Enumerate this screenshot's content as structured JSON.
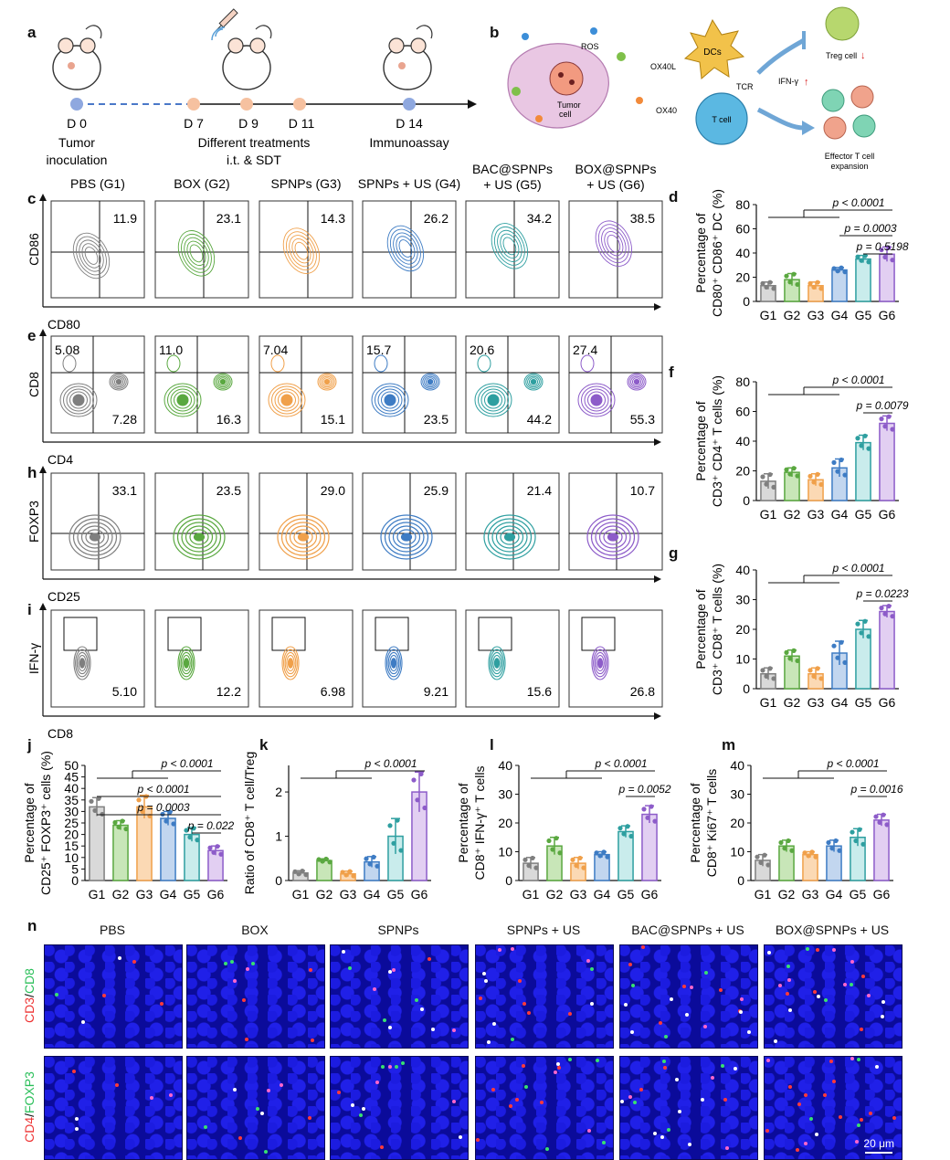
{
  "panel_letters": {
    "a": "a",
    "b": "b",
    "c": "c",
    "d": "d",
    "e": "e",
    "f": "f",
    "g": "g",
    "h": "h",
    "i": "i",
    "j": "j",
    "k": "k",
    "l": "l",
    "m": "m",
    "n": "n"
  },
  "timeline": {
    "days": [
      "D 0",
      "D 7",
      "D 9",
      "D 11",
      "D 14"
    ],
    "tumor_inoculation": [
      "Tumor",
      "inoculation"
    ],
    "treatments": [
      "Different treatments",
      "i.t. & SDT"
    ],
    "immunoassay": "Immunoassay"
  },
  "schematic": {
    "ros": "ROS",
    "tumor_cell": [
      "Tumor",
      "cell"
    ],
    "dcs": "DCs",
    "ox40l": "OX40L",
    "ox40": "OX40",
    "tcr": "TCR",
    "t_cell": "T cell",
    "treg": "Treg cell",
    "ifn": "IFN-γ",
    "effector": [
      "Effector T cell",
      "expansion"
    ]
  },
  "group_headers": [
    [
      "PBS (G1)"
    ],
    [
      "BOX (G2)"
    ],
    [
      "SPNPs (G3)"
    ],
    [
      "SPNPs + US (G4)"
    ],
    [
      "BAC@SPNPs",
      "+ US (G5)"
    ],
    [
      "BOX@SPNPs",
      "+ US (G6)"
    ]
  ],
  "group_colors": [
    "#7f7f7f",
    "#5aa840",
    "#f0a04a",
    "#3e7cc4",
    "#2e9fa0",
    "#8d5cc9"
  ],
  "flow_rows": [
    {
      "panel": "c",
      "ylabel": "CD86",
      "xlabel": "CD80",
      "values": [
        "11.9",
        "23.1",
        "14.3",
        "26.2",
        "34.2",
        "38.5"
      ]
    },
    {
      "panel": "e",
      "ylabel": "CD8",
      "xlabel": "CD4",
      "ul": [
        "5.08",
        "11.0",
        "7.04",
        "15.7",
        "20.6",
        "27.4"
      ],
      "lr": [
        "7.28",
        "16.3",
        "15.1",
        "23.5",
        "44.2",
        "55.3"
      ]
    },
    {
      "panel": "h",
      "ylabel": "FOXP3",
      "xlabel": "CD25",
      "values": [
        "33.1",
        "23.5",
        "29.0",
        "25.9",
        "21.4",
        "10.7"
      ]
    },
    {
      "panel": "i",
      "ylabel": "IFN-γ",
      "xlabel": "CD8",
      "values": [
        "5.10",
        "12.2",
        "6.98",
        "9.21",
        "15.6",
        "26.8"
      ]
    }
  ],
  "chart_data": [
    {
      "id": "d",
      "type": "bar",
      "categories": [
        "G1",
        "G2",
        "G3",
        "G4",
        "G5",
        "G6"
      ],
      "values": [
        13,
        18,
        13,
        26,
        35,
        39
      ],
      "errors": [
        3,
        5,
        3,
        2,
        3,
        6
      ],
      "ylabel": [
        "Percentage of",
        "CD80⁺ CD86⁺ DC (%)"
      ],
      "ylim": [
        0,
        80
      ],
      "ticks": [
        0,
        20,
        40,
        60,
        80
      ],
      "sig": [
        {
          "text": "p < 0.0001",
          "type": "multi"
        },
        {
          "text": "p = 0.0003",
          "type": "pair"
        },
        {
          "text": "p = 0.5198",
          "type": "pair"
        }
      ]
    },
    {
      "id": "f",
      "type": "bar",
      "categories": [
        "G1",
        "G2",
        "G3",
        "G4",
        "G5",
        "G6"
      ],
      "values": [
        13,
        19,
        14,
        22,
        39,
        52
      ],
      "errors": [
        5,
        3,
        4,
        6,
        5,
        5
      ],
      "ylabel": [
        "Percentage of",
        "CD3⁺ CD4⁺ T cells (%)"
      ],
      "ylim": [
        0,
        80
      ],
      "ticks": [
        0,
        20,
        40,
        60,
        80
      ],
      "sig": [
        {
          "text": "p < 0.0001",
          "type": "multi"
        },
        {
          "text": "p = 0.0079",
          "type": "pair"
        }
      ]
    },
    {
      "id": "g",
      "type": "bar",
      "categories": [
        "G1",
        "G2",
        "G3",
        "G4",
        "G5",
        "G6"
      ],
      "values": [
        5,
        11,
        5,
        12,
        20,
        26
      ],
      "errors": [
        2,
        2,
        2,
        4,
        3,
        2
      ],
      "ylabel": [
        "Percentage of",
        "CD3⁺ CD8⁺ T cells (%)"
      ],
      "ylim": [
        0,
        40
      ],
      "ticks": [
        0,
        10,
        20,
        30,
        40
      ],
      "sig": [
        {
          "text": "p < 0.0001",
          "type": "multi"
        },
        {
          "text": "p = 0.0223",
          "type": "pair"
        }
      ]
    },
    {
      "id": "j",
      "type": "bar",
      "categories": [
        "G1",
        "G2",
        "G3",
        "G4",
        "G5",
        "G6"
      ],
      "values": [
        32,
        24,
        32,
        27,
        20,
        13
      ],
      "errors": [
        4,
        2,
        5,
        3,
        3,
        2
      ],
      "ylabel": [
        "Percentage of",
        "CD25⁺ FOXP3⁺ cells (%)"
      ],
      "ylim": [
        0,
        50
      ],
      "ticks": [
        0,
        5,
        10,
        15,
        20,
        25,
        30,
        35,
        40,
        45,
        50
      ],
      "sig": [
        {
          "text": "p < 0.0001",
          "type": "pair"
        },
        {
          "text": "p = 0.0003",
          "type": "pair"
        },
        {
          "text": "p < 0.0001",
          "type": "multi"
        },
        {
          "text": "p = 0.022",
          "type": "pair"
        }
      ]
    },
    {
      "id": "k",
      "type": "bar",
      "categories": [
        "G1",
        "G2",
        "G3",
        "G4",
        "G5",
        "G6"
      ],
      "values": [
        0.17,
        0.45,
        0.15,
        0.42,
        1.0,
        2.0
      ],
      "errors": [
        0.05,
        0.04,
        0.06,
        0.12,
        0.4,
        0.45
      ],
      "ylabel": [
        "Ratio of CD8⁺ T cell/Treg"
      ],
      "ylim": [
        0,
        2.6
      ],
      "ticks": [
        0,
        1,
        2
      ],
      "sig": [
        {
          "text": "p < 0.0001",
          "type": "multi"
        }
      ]
    },
    {
      "id": "l",
      "type": "bar",
      "categories": [
        "G1",
        "G2",
        "G3",
        "G4",
        "G5",
        "G6"
      ],
      "values": [
        6,
        12,
        6,
        9,
        17,
        23
      ],
      "errors": [
        2,
        3,
        2,
        1,
        2,
        3
      ],
      "ylabel": [
        "Percentage of",
        "CD8⁺ IFN-γ⁺ T cells"
      ],
      "ylim": [
        0,
        40
      ],
      "ticks": [
        0,
        10,
        20,
        30,
        40
      ],
      "sig": [
        {
          "text": "p < 0.0001",
          "type": "multi"
        },
        {
          "text": "p = 0.0052",
          "type": "pair"
        }
      ]
    },
    {
      "id": "m",
      "type": "bar",
      "categories": [
        "G1",
        "G2",
        "G3",
        "G4",
        "G5",
        "G6"
      ],
      "values": [
        7,
        12,
        9,
        12,
        15,
        21
      ],
      "errors": [
        2,
        2,
        1,
        2,
        3,
        2
      ],
      "ylabel": [
        "Percentage of",
        "CD8⁺ Ki67⁺ T cells"
      ],
      "ylim": [
        0,
        40
      ],
      "ticks": [
        0,
        10,
        20,
        30,
        40
      ],
      "sig": [
        {
          "text": "p < 0.0001",
          "type": "multi"
        },
        {
          "text": "p = 0.0016",
          "type": "pair"
        }
      ]
    }
  ],
  "microscopy": {
    "columns": [
      "PBS",
      "BOX",
      "SPNPs",
      "SPNPs + US",
      "BAC@SPNPs + US",
      "BOX@SPNPs + US"
    ],
    "row1": {
      "a": "CD3",
      "sep": "/",
      "b": "CD8"
    },
    "row2": {
      "a": "CD4",
      "sep": "/",
      "b": "FOXP3"
    },
    "scalebar": "20 μm"
  }
}
